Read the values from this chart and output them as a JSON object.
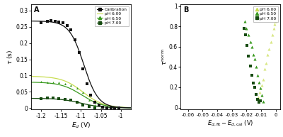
{
  "panel_A": {
    "title": "A",
    "xlabel": "$E_d$ (V)",
    "ylabel": "$\\tau$ (s)",
    "xlim": [
      -1.225,
      -0.975
    ],
    "ylim": [
      -0.005,
      0.32
    ],
    "xticks": [
      -1.2,
      -1.15,
      -1.1,
      -1.05,
      -1.0
    ],
    "yticks": [
      0,
      0.05,
      0.1,
      0.15,
      0.2,
      0.25,
      0.3
    ],
    "calibration_params": {
      "tau_max": 0.268,
      "E_half": -1.093,
      "k": 55
    },
    "ph600_params": {
      "tau_max": 0.098,
      "E_half": -1.095,
      "k": 38
    },
    "ph650_params": {
      "tau_max": 0.08,
      "E_half": -1.098,
      "k": 38
    },
    "ph700_params": {
      "tau_max": 0.03,
      "E_half": -1.1,
      "k": 38
    },
    "cal_color": "#111111",
    "ph600_color": "#c8dd50",
    "ph650_color": "#3a9a20",
    "ph700_color": "#164a10",
    "cal_data_x": [
      -1.2,
      -1.185,
      -1.175,
      -1.165,
      -1.155,
      -1.145,
      -1.135,
      -1.125,
      -1.115,
      -1.105,
      -1.095,
      -1.085,
      -1.075,
      -1.065,
      -1.055,
      -1.045,
      -1.035,
      -1.025,
      -1.015,
      -1.005
    ],
    "cal_data_y": [
      0.263,
      0.268,
      0.27,
      0.268,
      0.265,
      0.262,
      0.255,
      0.24,
      0.21,
      0.17,
      0.12,
      0.075,
      0.04,
      0.018,
      0.008,
      0.003,
      0.001,
      0.0,
      0.0,
      0.0
    ],
    "ph650_data_x": [
      -1.2,
      -1.185,
      -1.17,
      -1.155,
      -1.14,
      -1.125,
      -1.11,
      -1.095,
      -1.08,
      -1.065,
      -1.05
    ],
    "ph650_data_y": [
      0.081,
      0.08,
      0.079,
      0.078,
      0.075,
      0.07,
      0.062,
      0.048,
      0.025,
      0.009,
      0.002
    ],
    "ph700_data_x": [
      -1.2,
      -1.185,
      -1.17,
      -1.155,
      -1.14,
      -1.125,
      -1.11,
      -1.095,
      -1.08,
      -1.065
    ],
    "ph700_data_y": [
      0.029,
      0.03,
      0.03,
      0.029,
      0.027,
      0.024,
      0.018,
      0.01,
      0.004,
      0.001
    ]
  },
  "panel_B": {
    "title": "B",
    "xlabel": "$E_{d,\\mathrm{fit}} - E_{d,\\mathrm{cal}}$ (V)",
    "ylabel": "$\\tau^{\\mathrm{norm}}$",
    "xlim": [
      -0.065,
      0.003
    ],
    "ylim": [
      -0.02,
      1.02
    ],
    "xticks": [
      -0.06,
      -0.05,
      -0.04,
      -0.03,
      -0.02,
      -0.01,
      0.0
    ],
    "yticks": [
      0.0,
      0.2,
      0.4,
      0.6,
      0.8,
      1.0
    ],
    "ph600_color": "#c8dd50",
    "ph650_color": "#3a9a20",
    "ph700_color": "#164a10",
    "ph600_x": [
      -0.012,
      -0.011,
      -0.0095,
      -0.0085,
      -0.0075,
      -0.0065,
      -0.0055,
      -0.0045,
      -0.0035,
      -0.0025,
      -0.0015,
      -0.001,
      -0.0005
    ],
    "ph600_y": [
      0.1,
      0.15,
      0.22,
      0.28,
      0.38,
      0.44,
      0.52,
      0.58,
      0.65,
      0.72,
      0.78,
      0.82,
      0.85
    ],
    "ph650_x": [
      -0.021,
      -0.02,
      -0.0185,
      -0.0175,
      -0.0165,
      -0.0155,
      -0.0145,
      -0.0135,
      -0.0125,
      -0.0115,
      -0.0105,
      -0.0095,
      -0.0085
    ],
    "ph650_y": [
      0.85,
      0.78,
      0.72,
      0.65,
      0.6,
      0.52,
      0.48,
      0.4,
      0.32,
      0.25,
      0.19,
      0.12,
      0.06
    ],
    "ph700_x": [
      -0.0215,
      -0.0205,
      -0.0195,
      -0.0185,
      -0.0175,
      -0.0165,
      -0.0155,
      -0.0145,
      -0.0135,
      -0.0125,
      -0.0115,
      -0.0105
    ],
    "ph700_y": [
      0.78,
      0.72,
      0.61,
      0.51,
      0.41,
      0.32,
      0.24,
      0.2,
      0.13,
      0.08,
      0.05,
      0.07
    ]
  },
  "figure_bg": "#ffffff"
}
